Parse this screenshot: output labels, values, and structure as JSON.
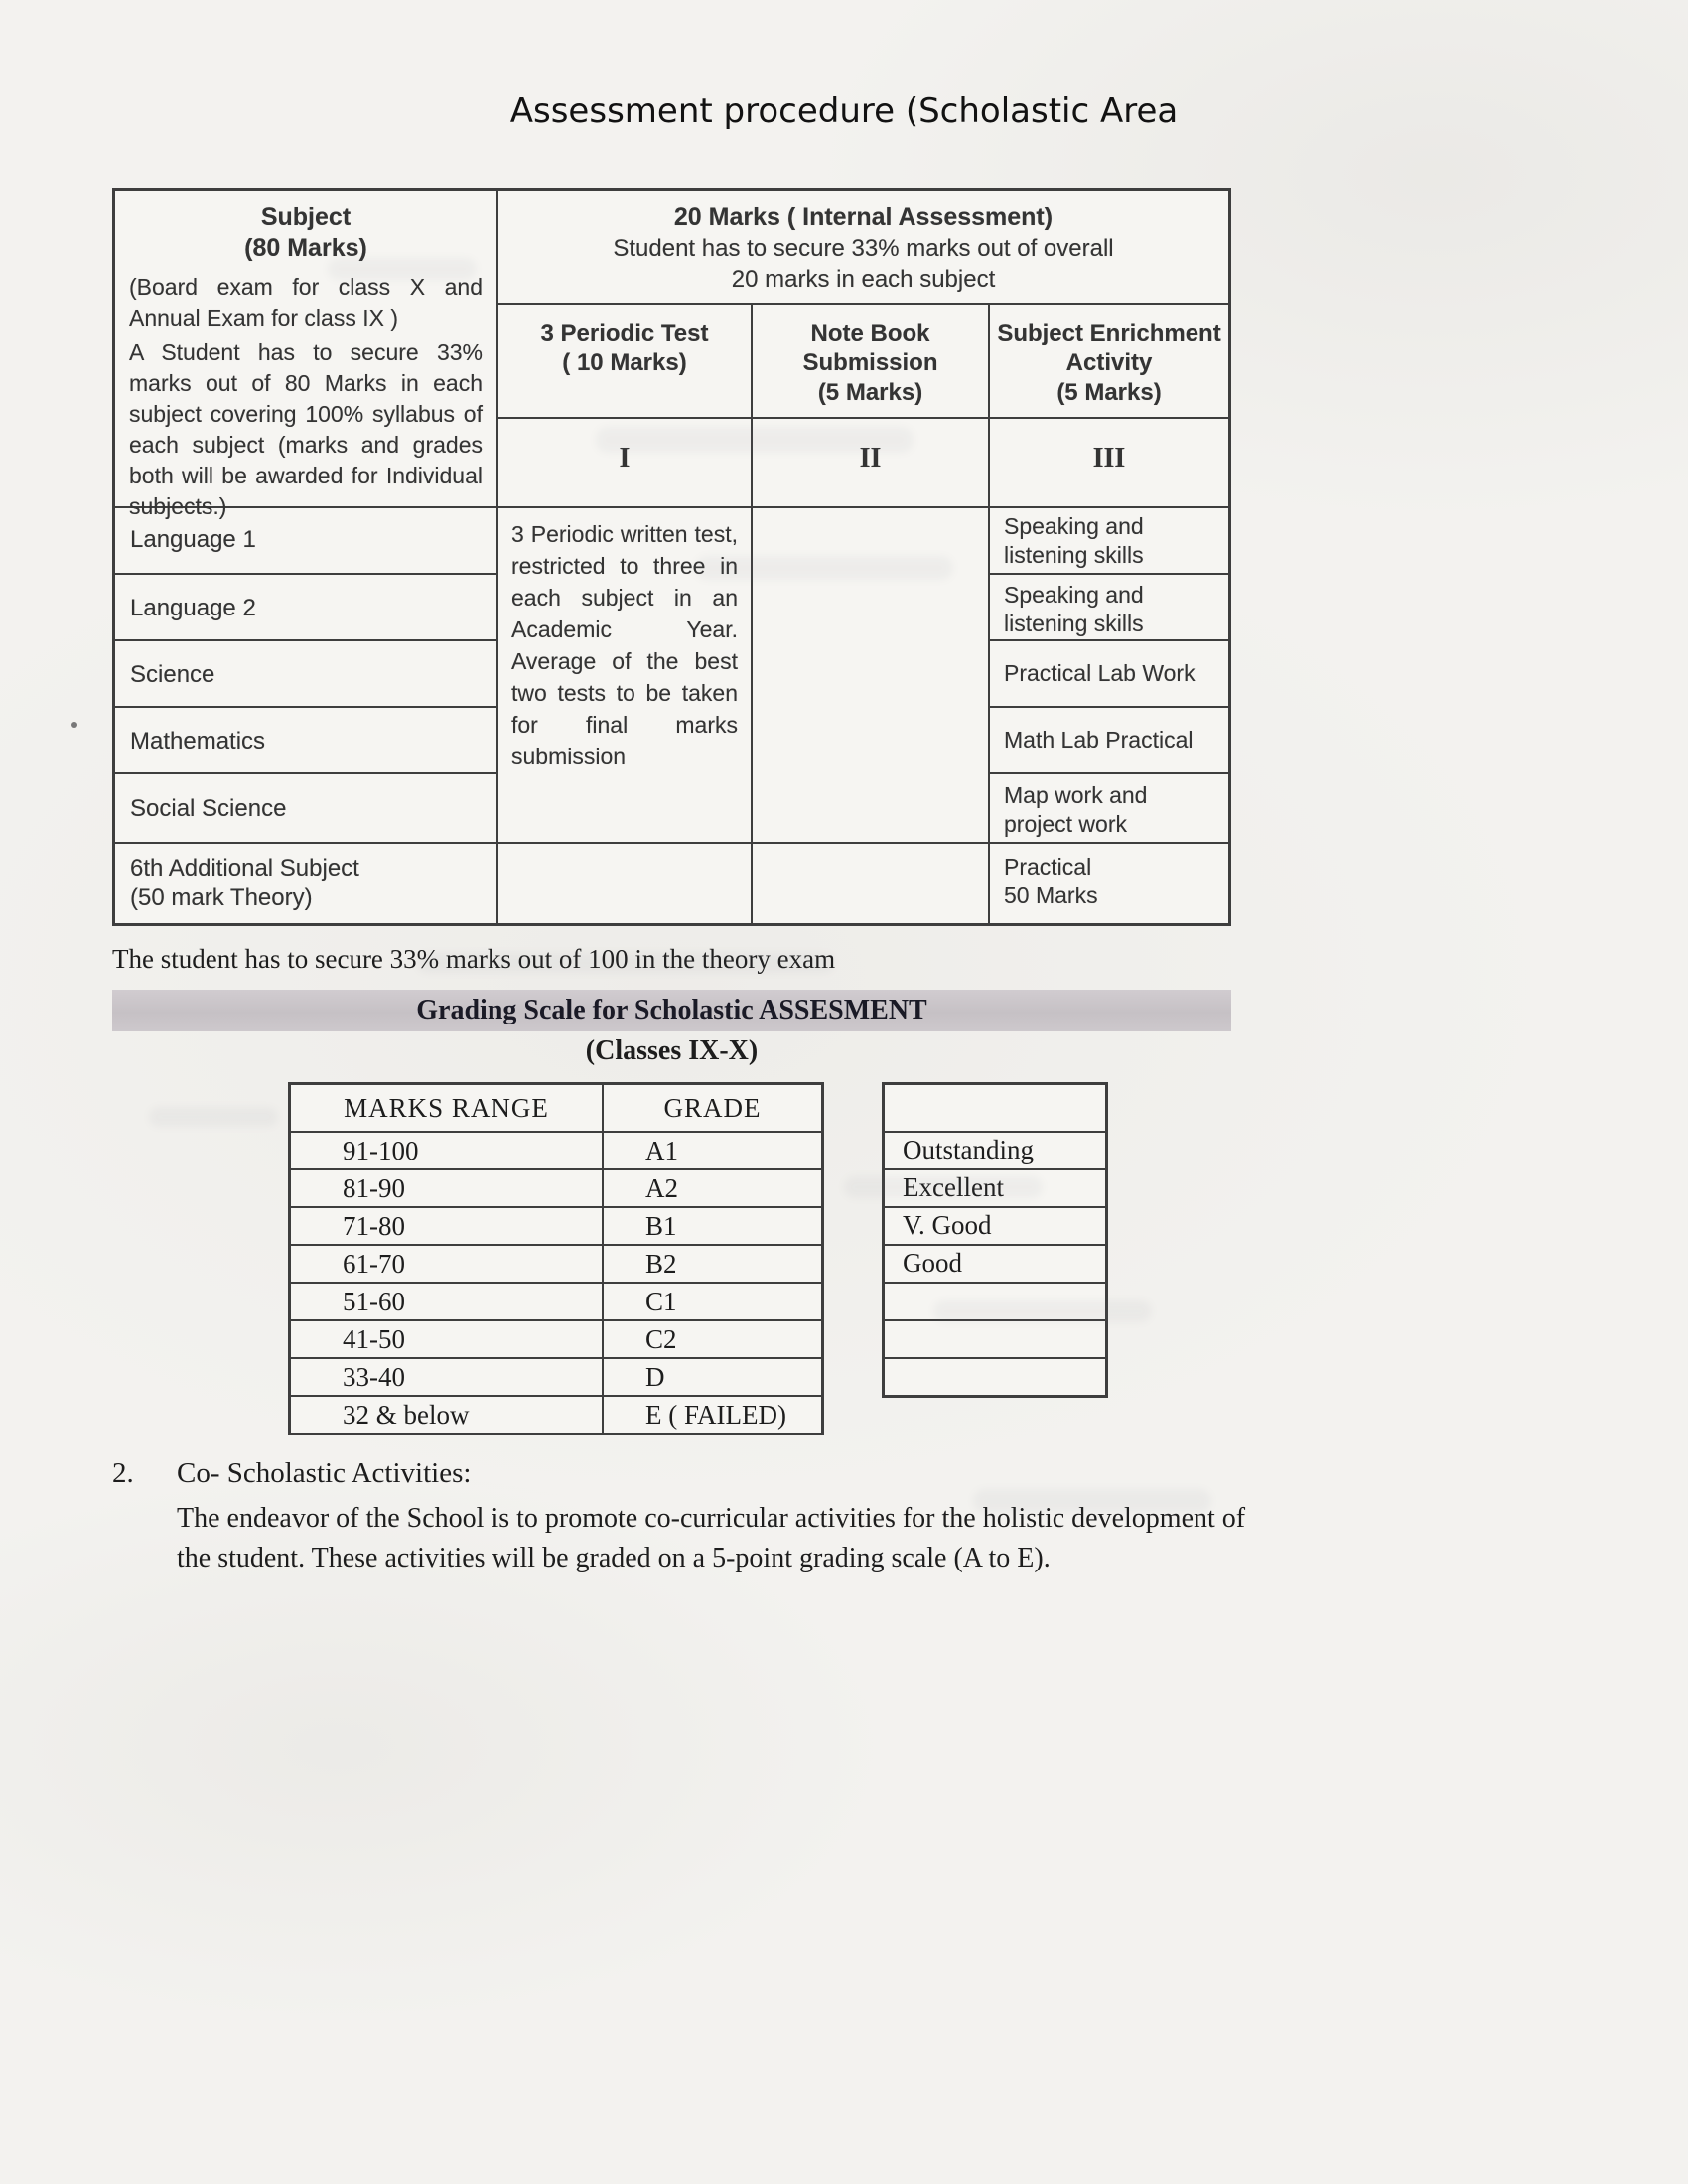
{
  "page": {
    "title": "Assessment procedure (Scholastic Area"
  },
  "assessment_table": {
    "subject_column": {
      "title": "Subject",
      "marks": "(80 Marks)",
      "desc_line1": "(Board exam for class X and Annual Exam for class IX )",
      "desc_line2": "A Student has to secure 33% marks out of 80 Marks in each subject covering 100% syllabus of each subject (marks and grades both will be awarded for Individual subjects.)",
      "subjects": [
        [
          "Language 1"
        ],
        [
          "Language 2"
        ],
        [
          "Science"
        ],
        [
          "Mathematics"
        ],
        [
          "Social Science"
        ],
        [
          "6th Additional Subject",
          "(50 mark Theory)"
        ]
      ]
    },
    "internal_header": {
      "line1": "20 Marks ( Internal Assessment)",
      "line2": "Student has to secure 33% marks out of overall",
      "line3": "20 marks in each subject"
    },
    "columns": [
      {
        "header_lines": [
          "3 Periodic Test",
          "( 10 Marks)"
        ],
        "numeral": "I"
      },
      {
        "header_lines": [
          "Note Book",
          "Submission",
          "(5 Marks)"
        ],
        "numeral": "II"
      },
      {
        "header_lines": [
          "Subject Enrichment",
          "Activity",
          "(5 Marks)"
        ],
        "numeral": "III"
      }
    ],
    "periodic_note": "3 Periodic written test, restricted to three in each subject in an Academic Year. Average of the best two tests to be taken for final marks submission",
    "enrichment_rows": [
      [
        "Speaking and",
        "listening skills"
      ],
      [
        "Speaking and",
        "listening skills"
      ],
      [
        "Practical Lab Work"
      ],
      [
        "Math Lab Practical"
      ],
      [
        "Map work and",
        "project work"
      ],
      [
        "Practical",
        "50 Marks"
      ]
    ]
  },
  "theory_note": "The student has to secure 33% marks out of 100 in the theory exam",
  "grading": {
    "banner_title": "Grading Scale for Scholastic ASSESMENT",
    "subtitle": "(Classes IX-X)",
    "headers": {
      "range": "MARKS RANGE",
      "grade": "GRADE"
    },
    "rows": [
      {
        "range": "91-100",
        "grade": "A1",
        "remark": "Outstanding"
      },
      {
        "range": "81-90",
        "grade": "A2",
        "remark": "Excellent"
      },
      {
        "range": "71-80",
        "grade": "B1",
        "remark": "V. Good"
      },
      {
        "range": "61-70",
        "grade": "B2",
        "remark": "Good"
      },
      {
        "range": "51-60",
        "grade": "C1",
        "remark": ""
      },
      {
        "range": "41-50",
        "grade": "C2",
        "remark": ""
      },
      {
        "range": "33-40",
        "grade": "D",
        "remark": ""
      },
      {
        "range": "32 & below",
        "grade": "E ( FAILED)",
        "remark": ""
      }
    ]
  },
  "co_scholastic": {
    "number": "2.",
    "title": "Co- Scholastic Activities:",
    "body": "The endeavor of the School is to promote co-curricular activities for the holistic development of the student. These activities will be graded on a 5-point grading scale (A to E)."
  },
  "colors": {
    "banner_bg": "#c9c4c8",
    "table_border": "#3e3e3e",
    "page_bg": "#f3f2ef"
  }
}
